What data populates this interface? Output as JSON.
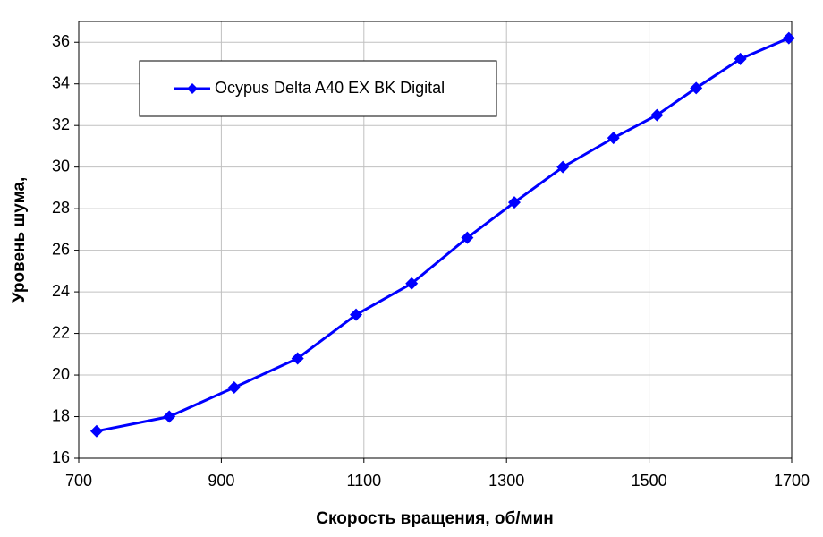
{
  "chart_data": {
    "type": "line",
    "x_label": "Скорость вращения, об/мин",
    "y_label": "Уровень шума,",
    "x": [
      725,
      827,
      918,
      1007,
      1089,
      1167,
      1245,
      1311,
      1379,
      1450,
      1511,
      1566,
      1628,
      1696
    ],
    "series": [
      {
        "name": "Ocypus Delta A40 EX BK Digital",
        "color": "#0000ff",
        "values": [
          17.3,
          18.0,
          19.4,
          20.8,
          22.9,
          24.4,
          26.6,
          28.3,
          30.0,
          31.4,
          32.5,
          33.8,
          35.2,
          36.2
        ]
      }
    ],
    "xlim": [
      700,
      1700
    ],
    "xticks": [
      700,
      900,
      1100,
      1300,
      1500,
      1700
    ],
    "ylim": [
      16,
      37
    ],
    "yticks": [
      16,
      18,
      20,
      22,
      24,
      26,
      28,
      30,
      32,
      34,
      36
    ],
    "grid": true,
    "legend": "upper left"
  }
}
